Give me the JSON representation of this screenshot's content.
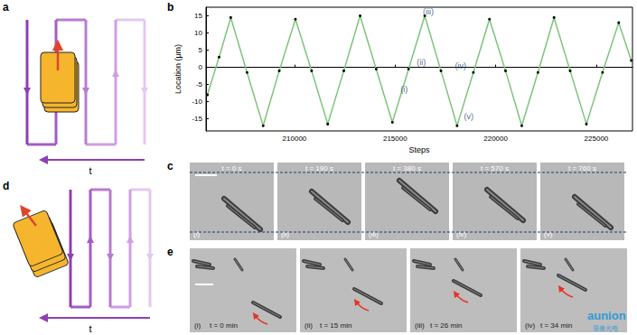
{
  "chart_data": {
    "type": "line",
    "x_label": "Steps",
    "y_label": "Location (μm)",
    "xlim": [
      205600,
      226800
    ],
    "ylim": [
      -18.5,
      17.5
    ],
    "xticks": [
      210000,
      215000,
      220000,
      225000
    ],
    "yticks": [
      -15,
      -10,
      -5,
      0,
      5,
      10,
      15
    ],
    "grid": false,
    "tick_labels": true,
    "x": [
      205670,
      206250,
      206830,
      207640,
      208440,
      209240,
      210045,
      210850,
      211650,
      212450,
      213260,
      214060,
      214865,
      215670,
      216475,
      217280,
      218080,
      218890,
      219690,
      220490,
      221295,
      222100,
      222900,
      223700,
      224510,
      225310,
      226115,
      226740
    ],
    "values": [
      -8.0,
      3.0,
      14.5,
      -1.5,
      -17.0,
      -1.0,
      14.0,
      -1.0,
      -16.5,
      -1.0,
      15.0,
      -0.5,
      -16.0,
      -0.5,
      15.0,
      -1.0,
      -17.0,
      -1.5,
      14.0,
      -1.0,
      -17.0,
      -1.5,
      14.5,
      -1.0,
      -16.5,
      -1.5,
      13.0,
      2.0
    ],
    "color": "#7cc47a",
    "marker": "circle",
    "line_style": "solid",
    "annotations": [
      {
        "text": "(i)",
        "x": 215450,
        "y": -6.5
      },
      {
        "text": "(ii)",
        "x": 216300,
        "y": 1.5
      },
      {
        "text": "(iii)",
        "x": 216650,
        "y": 16.3
      },
      {
        "text": "(iv)",
        "x": 218260,
        "y": 0.5
      },
      {
        "text": "(v)",
        "x": 218660,
        "y": -14.2
      }
    ]
  },
  "figure": {
    "panel_a": {
      "label": "a",
      "time_label": "t"
    },
    "panel_b": {
      "label": "b"
    },
    "panel_c": {
      "label": "c",
      "frames": [
        {
          "time": "t = 0 s",
          "index": "(i)"
        },
        {
          "time": "t = 190 s",
          "index": "(ii)"
        },
        {
          "time": "t = 380 s",
          "index": "(iii)"
        },
        {
          "time": "t = 570 s",
          "index": "(iv)"
        },
        {
          "time": "t = 760 s",
          "index": "(v)"
        }
      ]
    },
    "panel_d": {
      "label": "d",
      "time_label": "t"
    },
    "panel_e": {
      "label": "e",
      "frames": [
        {
          "time": "t = 0 min",
          "index": "(i)"
        },
        {
          "time": "t = 15 min",
          "index": "(ii)"
        },
        {
          "time": "t = 26 min",
          "index": "(iii)"
        },
        {
          "time": "t = 34 min",
          "index": "(iv)"
        }
      ]
    },
    "watermark": [
      "aunion",
      "显微光电"
    ]
  }
}
